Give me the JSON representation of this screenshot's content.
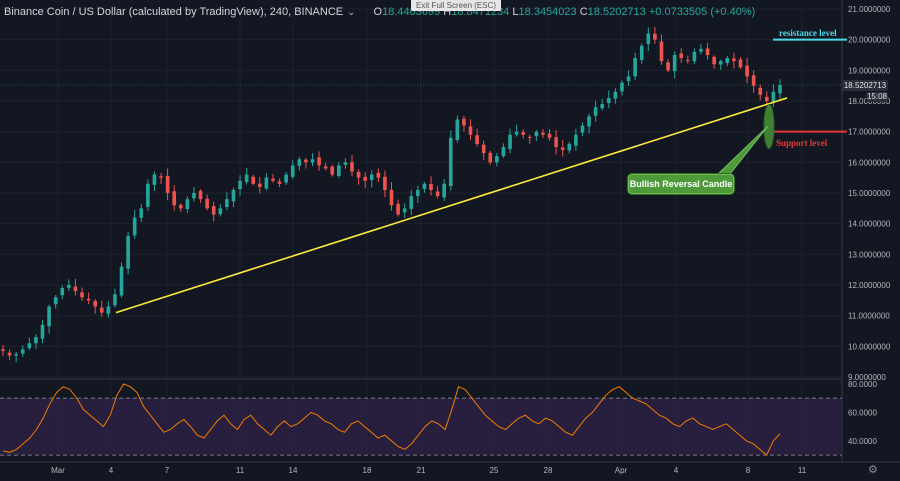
{
  "header": {
    "symbol_title": "Binance Coin / US Dollar (calculated by TradingView), 240, BINANCE",
    "ohlc": {
      "o_label": "O",
      "o": "18.4463699",
      "h_label": "H",
      "h": "18.8471234",
      "l_label": "L",
      "l": "18.3454023",
      "c_label": "C",
      "c": "18.5202713",
      "change": "+0.0733505 (+0.40%)"
    },
    "exit_fullscreen": "Exit Full Screen (ESC)"
  },
  "badges": {
    "last_price": "18.5202713",
    "countdown": "15:08"
  },
  "annotations": {
    "resistance_label": "resistance level",
    "support_label": "Support level",
    "callout": "Bullish Reversal Candle"
  },
  "colors": {
    "up": "#26a69a",
    "down": "#ef5350",
    "trendline": "#ffeb3b",
    "resistance": "#4dd9e8",
    "support": "#e53935",
    "rsi": "#f57c00",
    "rsi_band": "#2a2040"
  },
  "chart_data": [
    {
      "type": "candlestick",
      "y_ticks": [
        "21.0000000",
        "20.0000000",
        "19.0000000",
        "18.0000000",
        "17.0000000",
        "16.0000000",
        "15.0000000",
        "14.0000000",
        "13.0000000",
        "12.0000000",
        "11.0000000",
        "10.0000000",
        "9.0000000"
      ],
      "ylim": [
        9,
        21
      ],
      "x_ticks": [
        "Mar",
        "4",
        "7",
        "11",
        "14",
        "18",
        "21",
        "25",
        "28",
        "Apr",
        "4",
        "8",
        "11"
      ],
      "close_path": [
        9.85,
        9.7,
        9.75,
        9.9,
        10.1,
        10.3,
        10.7,
        11.3,
        11.6,
        11.9,
        12.0,
        11.8,
        11.6,
        11.5,
        11.3,
        11.1,
        11.3,
        11.7,
        12.6,
        13.6,
        14.2,
        14.5,
        15.3,
        15.6,
        15.5,
        15.0,
        14.6,
        14.5,
        14.8,
        15.0,
        14.8,
        14.5,
        14.3,
        14.5,
        14.8,
        15.1,
        15.4,
        15.6,
        15.3,
        15.2,
        15.5,
        15.4,
        15.3,
        15.6,
        15.9,
        16.1,
        16.0,
        16.1,
        15.9,
        15.8,
        15.6,
        15.9,
        16.0,
        15.7,
        15.5,
        15.4,
        15.6,
        15.5,
        15.1,
        14.6,
        14.3,
        14.5,
        14.9,
        15.1,
        15.3,
        15.1,
        14.9,
        15.3,
        16.8,
        17.4,
        17.2,
        16.9,
        16.6,
        16.3,
        16.0,
        16.2,
        16.5,
        16.9,
        17.0,
        16.9,
        16.8,
        17.0,
        16.9,
        16.8,
        16.5,
        16.4,
        16.6,
        16.9,
        17.2,
        17.5,
        17.8,
        17.9,
        18.1,
        18.3,
        18.6,
        18.8,
        19.4,
        19.8,
        20.2,
        20.0,
        19.3,
        19.0,
        19.5,
        19.4,
        19.3,
        19.6,
        19.7,
        19.5,
        19.2,
        19.3,
        19.4,
        19.3,
        19.1,
        18.8,
        18.5,
        18.2,
        18.0,
        18.3,
        18.52
      ],
      "trendline": {
        "start": {
          "x": "Mar 4",
          "y": 11.1
        },
        "end": {
          "x": "Apr 10",
          "y": 18.1
        }
      },
      "resistance_level": 20.0,
      "support_level": 17.0,
      "last_price": 18.52
    },
    {
      "type": "line",
      "series": [
        {
          "name": "",
          "values": [
            33,
            32,
            34,
            38,
            42,
            48,
            56,
            66,
            74,
            78,
            76,
            70,
            62,
            58,
            54,
            50,
            58,
            72,
            80,
            78,
            74,
            64,
            58,
            52,
            46,
            48,
            52,
            55,
            50,
            44,
            42,
            48,
            54,
            58,
            52,
            48,
            55,
            58,
            52,
            48,
            44,
            50,
            54,
            50,
            52,
            56,
            60,
            58,
            54,
            52,
            48,
            46,
            52,
            54,
            50,
            46,
            42,
            44,
            40,
            36,
            34,
            38,
            44,
            50,
            54,
            52,
            48,
            62,
            78,
            76,
            70,
            64,
            58,
            54,
            50,
            48,
            52,
            56,
            58,
            54,
            52,
            56,
            54,
            50,
            46,
            44,
            50,
            56,
            60,
            66,
            72,
            76,
            78,
            74,
            70,
            68,
            66,
            62,
            58,
            56,
            52,
            50,
            54,
            56,
            52,
            50,
            48,
            50,
            52,
            48,
            44,
            40,
            38,
            34,
            30,
            40,
            45
          ]
        }
      ],
      "y_ticks": [
        "80.0000",
        "60.0000",
        "40.0000"
      ],
      "ylim": [
        28,
        82
      ],
      "band": [
        30,
        70
      ]
    }
  ]
}
